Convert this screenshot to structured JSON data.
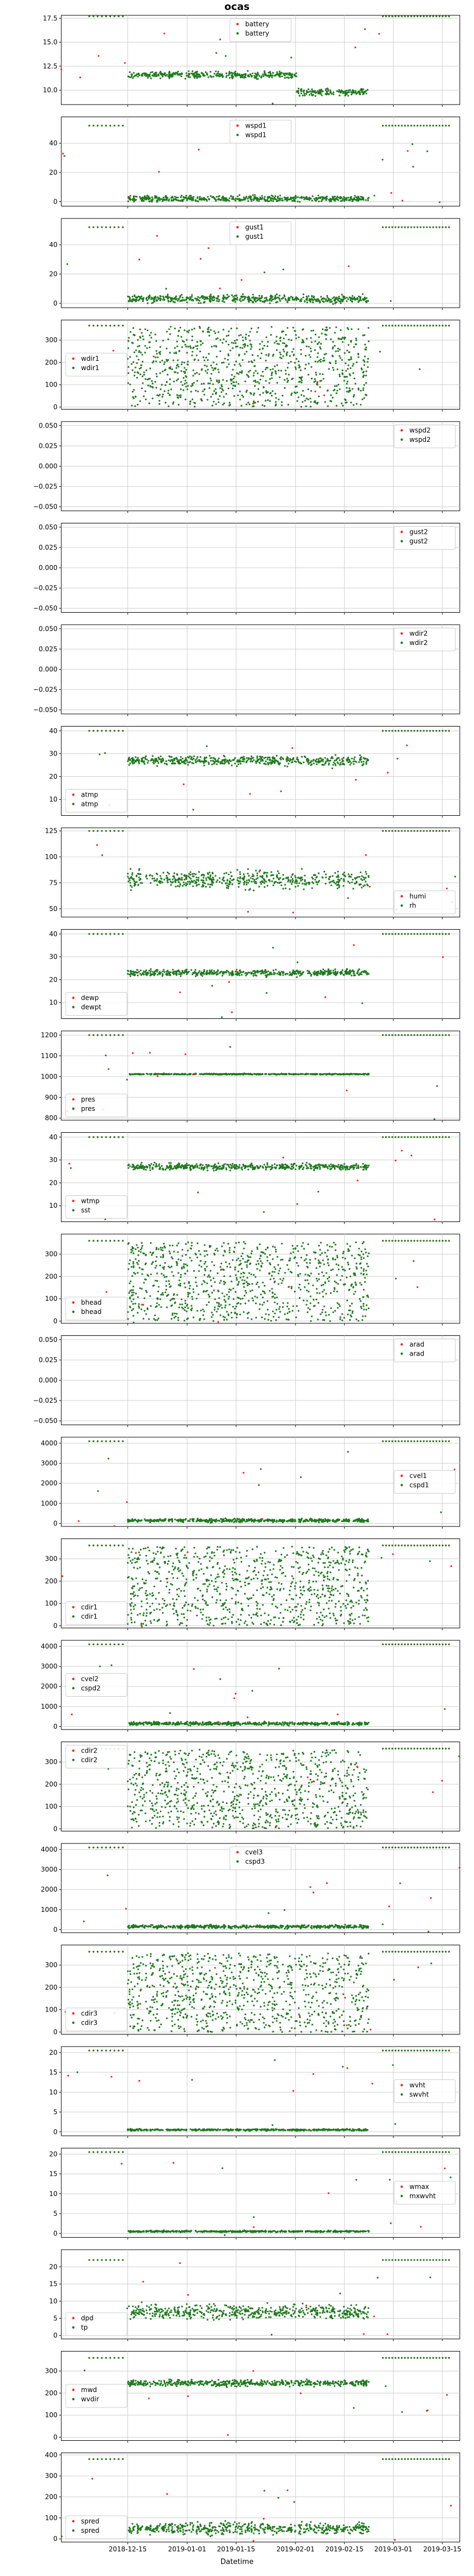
{
  "title": "ocas",
  "xlabel": "Datetime",
  "colors": {
    "red": "#ff1f1f",
    "green": "#1f7a1f",
    "grid": "#cfcfcf"
  },
  "chart_data": {
    "type": "scatter",
    "shared_x": true,
    "x_ticks": [
      "2018-12-15",
      "2019-01-01",
      "2019-01-15",
      "2019-02-01",
      "2019-02-15",
      "2019-03-01",
      "2019-03-15"
    ],
    "x_range": [
      "2018-11-26",
      "2019-03-20"
    ],
    "grid": true,
    "panels": [
      {
        "name": "battery",
        "legend": [
          "battery",
          "battery"
        ],
        "legend_loc": "upper center",
        "ylim": [
          8.5,
          17.8
        ],
        "yticks": [
          "10.0",
          "12.5",
          "15.0",
          "17.5"
        ],
        "pattern": "battery",
        "base": 11.6,
        "sat": 17.7,
        "spread": 0.5
      },
      {
        "name": "wspd1",
        "legend": [
          "wspd1",
          "wspd1"
        ],
        "legend_loc": "upper center",
        "ylim": [
          -3,
          58
        ],
        "yticks": [
          "0",
          "20",
          "40"
        ],
        "pattern": "flag",
        "base": 2,
        "sat": 52,
        "spread": 3
      },
      {
        "name": "gust1",
        "legend": [
          "gust1",
          "gust1"
        ],
        "legend_loc": "upper center",
        "ylim": [
          -3,
          58
        ],
        "yticks": [
          "0",
          "20",
          "40"
        ],
        "pattern": "flag",
        "base": 3,
        "sat": 52,
        "spread": 4
      },
      {
        "name": "wdir1",
        "legend": [
          "wdir1",
          "wdir1"
        ],
        "legend_loc": "center left",
        "ylim": [
          -10,
          390
        ],
        "yticks": [
          "0",
          "100",
          "200",
          "300"
        ],
        "pattern": "uniform",
        "base": 0,
        "sat": 365,
        "spread": 0
      },
      {
        "name": "wspd2",
        "legend": [
          "wspd2",
          "wspd2"
        ],
        "legend_loc": "upper right",
        "ylim": [
          -0.055,
          0.055
        ],
        "yticks": [
          "−0.050",
          "−0.025",
          "0.000",
          "0.025",
          "0.050"
        ],
        "pattern": "empty"
      },
      {
        "name": "gust2",
        "legend": [
          "gust2",
          "gust2"
        ],
        "legend_loc": "upper right",
        "ylim": [
          -0.055,
          0.055
        ],
        "yticks": [
          "−0.050",
          "−0.025",
          "0.000",
          "0.025",
          "0.050"
        ],
        "pattern": "empty"
      },
      {
        "name": "wdir2",
        "legend": [
          "wdir2",
          "wdir2"
        ],
        "legend_loc": "upper right",
        "ylim": [
          -0.055,
          0.055
        ],
        "yticks": [
          "−0.050",
          "−0.025",
          "0.000",
          "0.025",
          "0.050"
        ],
        "pattern": "empty"
      },
      {
        "name": "atmp",
        "legend": [
          "atmp",
          "atmp"
        ],
        "legend_loc": "lower left",
        "ylim": [
          3,
          42
        ],
        "yticks": [
          "10",
          "20",
          "30",
          "40"
        ],
        "pattern": "flag",
        "base": 27,
        "sat": 40,
        "spread": 3
      },
      {
        "name": "humi",
        "legend": [
          "humi",
          "rh"
        ],
        "legend_loc": "lower right",
        "ylim": [
          42,
          128
        ],
        "yticks": [
          "50",
          "75",
          "100",
          "125"
        ],
        "pattern": "flag",
        "base": 78,
        "sat": 125,
        "spread": 12
      },
      {
        "name": "dewp",
        "legend": [
          "dewp",
          "dewpt"
        ],
        "legend_loc": "lower left",
        "ylim": [
          3,
          42
        ],
        "yticks": [
          "10",
          "20",
          "30",
          "40"
        ],
        "pattern": "flag",
        "base": 23,
        "sat": 40,
        "spread": 2
      },
      {
        "name": "pres",
        "legend": [
          "pres",
          "pres"
        ],
        "legend_loc": "lower left",
        "ylim": [
          790,
          1220
        ],
        "yticks": [
          "800",
          "900",
          "1000",
          "1100",
          "1200"
        ],
        "pattern": "flag",
        "base": 1012,
        "sat": 1200,
        "spread": 4
      },
      {
        "name": "wtmp",
        "legend": [
          "wtmp",
          "sst"
        ],
        "legend_loc": "lower left",
        "ylim": [
          3,
          42
        ],
        "yticks": [
          "10",
          "20",
          "30",
          "40"
        ],
        "pattern": "flag",
        "base": 27,
        "sat": 40,
        "spread": 2
      },
      {
        "name": "bhead",
        "legend": [
          "bhead",
          "bhead"
        ],
        "legend_loc": "lower left",
        "ylim": [
          -10,
          390
        ],
        "yticks": [
          "0",
          "100",
          "200",
          "300"
        ],
        "pattern": "uniform",
        "base": 0,
        "sat": 360,
        "spread": 0
      },
      {
        "name": "arad",
        "legend": [
          "arad",
          "arad"
        ],
        "legend_loc": "upper right",
        "ylim": [
          -0.055,
          0.055
        ],
        "yticks": [
          "−0.050",
          "−0.025",
          "0.000",
          "0.025",
          "0.050"
        ],
        "pattern": "empty"
      },
      {
        "name": "cvel1",
        "legend": [
          "cvel1",
          "cspd1"
        ],
        "legend_loc": "center right",
        "ylim": [
          -150,
          4300
        ],
        "yticks": [
          "0",
          "1000",
          "2000",
          "3000",
          "4000"
        ],
        "pattern": "flag",
        "base": 150,
        "sat": 4100,
        "spread": 120
      },
      {
        "name": "cdir1",
        "legend": [
          "cdir1",
          "cdir1"
        ],
        "legend_loc": "lower left",
        "ylim": [
          -10,
          390
        ],
        "yticks": [
          "0",
          "100",
          "200",
          "300"
        ],
        "pattern": "uniform",
        "base": 0,
        "sat": 360,
        "spread": 0
      },
      {
        "name": "cvel2",
        "legend": [
          "cvel2",
          "cspd2"
        ],
        "legend_loc": "center left",
        "ylim": [
          -150,
          4300
        ],
        "yticks": [
          "0",
          "1000",
          "2000",
          "3000",
          "4000"
        ],
        "pattern": "flag",
        "base": 150,
        "sat": 4100,
        "spread": 120
      },
      {
        "name": "cdir2",
        "legend": [
          "cdir2",
          "cdir2"
        ],
        "legend_loc": "upper left",
        "ylim": [
          -10,
          390
        ],
        "yticks": [
          "0",
          "100",
          "200",
          "300"
        ],
        "pattern": "uniform",
        "base": 0,
        "sat": 360,
        "spread": 0
      },
      {
        "name": "cvel3",
        "legend": [
          "cvel3",
          "cspd3"
        ],
        "legend_loc": "upper center",
        "ylim": [
          -150,
          4300
        ],
        "yticks": [
          "0",
          "1000",
          "2000",
          "3000",
          "4000"
        ],
        "pattern": "flag",
        "base": 150,
        "sat": 4100,
        "spread": 120
      },
      {
        "name": "cdir3",
        "legend": [
          "cdir3",
          "cdir3"
        ],
        "legend_loc": "lower left",
        "ylim": [
          -10,
          390
        ],
        "yticks": [
          "0",
          "100",
          "200",
          "300"
        ],
        "pattern": "uniform",
        "base": 0,
        "sat": 360,
        "spread": 0
      },
      {
        "name": "wvht",
        "legend": [
          "wvht",
          "swvht"
        ],
        "legend_loc": "center right",
        "ylim": [
          -1,
          21.5
        ],
        "yticks": [
          "0",
          "5",
          "10",
          "15",
          "20"
        ],
        "pattern": "flag",
        "base": 0.5,
        "sat": 20.5,
        "spread": 0.3
      },
      {
        "name": "wmax",
        "legend": [
          "wmax",
          "mxwvht"
        ],
        "legend_loc": "center right",
        "ylim": [
          -1,
          21.5
        ],
        "yticks": [
          "0",
          "5",
          "10",
          "15",
          "20"
        ],
        "pattern": "flag",
        "base": 0.5,
        "sat": 20.5,
        "spread": 0.3
      },
      {
        "name": "dpd",
        "legend": [
          "dpd",
          "tp"
        ],
        "legend_loc": "lower left",
        "ylim": [
          -1,
          25
        ],
        "yticks": [
          "0",
          "5",
          "10",
          "15",
          "20"
        ],
        "pattern": "flag",
        "base": 7,
        "sat": 22,
        "spread": 3
      },
      {
        "name": "mwd",
        "legend": [
          "mwd",
          "wvdir"
        ],
        "legend_loc": "center left",
        "ylim": [
          -15,
          390
        ],
        "yticks": [
          "0",
          "100",
          "200",
          "300"
        ],
        "pattern": "band",
        "base": 245,
        "sat": 360,
        "spread": 20
      },
      {
        "name": "spred",
        "legend": [
          "spred",
          "spred"
        ],
        "legend_loc": "lower left",
        "ylim": [
          -15,
          410
        ],
        "yticks": [
          "0",
          "100",
          "200",
          "300",
          "400"
        ],
        "pattern": "flag",
        "base": 50,
        "sat": 380,
        "spread": 40
      }
    ]
  }
}
